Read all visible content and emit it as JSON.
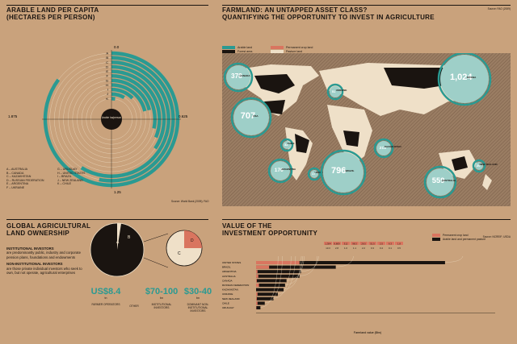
{
  "colors": {
    "background": "#c9a27c",
    "teal": "#2a9a92",
    "dark": "#1a1410",
    "light_teal": "#9ecfc8",
    "salmon": "#d9755f",
    "pale": "#efe0c8",
    "grey": "#aab3b3"
  },
  "arable": {
    "title_line1": "ARABLE LAND PER CAPITA",
    "title_line2": "(HECTARES PER PERSON)",
    "ring_letters": [
      "A",
      "B",
      "C",
      "D",
      "E",
      "F",
      "G",
      "H",
      "I",
      "J",
      "K"
    ],
    "tick_top": "0.0",
    "tick_left": "1.875",
    "tick_right": "0.625",
    "tick_bottom": "1.25",
    "center_label": "Arable ha/person",
    "legend": [
      "A – AUSTRALIA",
      "B – CANADA",
      "C – KAZAKHSTAN",
      "D – RUSSIAN FEDERATION",
      "E – ARGENTINA",
      "F – UKRAINE",
      "G – URUGUAY",
      "H – UNITED STATES",
      "I – BRAZIL",
      "J – NEW ZEALAND",
      "K – CHILE"
    ],
    "source": "Source: World Bank (2009); FAO"
  },
  "farmland": {
    "title_line1": "FARMLAND: AN UNTAPPED ASSET CLASS?",
    "title_line2": "QUANTIFYING THE OPPORTUNITY TO INVEST IN AGRICULTURE",
    "legend": {
      "arable": "Arable land",
      "forest": "Forest area",
      "permanent_crop": "Permanent crop land",
      "pasture": "Pasture land"
    },
    "source": "Source: FAO (2009)",
    "bubbles": [
      {
        "value": "378",
        "name": "CANADA"
      },
      {
        "value": "51",
        "name": "UKRAINE"
      },
      {
        "value": "1,024",
        "name": "RUSSIA"
      },
      {
        "value": "707",
        "name": "USA"
      },
      {
        "value": "32",
        "name": "CHILE"
      },
      {
        "value": "213",
        "name": "KAZAKHSTAN"
      },
      {
        "value": "170",
        "name": "ARGENTINA"
      },
      {
        "value": "17",
        "name": "URUGUAY"
      },
      {
        "value": "796",
        "name": "BRAZIL"
      },
      {
        "value": "20",
        "name": "NEW ZEALAND"
      },
      {
        "value": "559",
        "name": "AUSTRALIA"
      }
    ],
    "bubble_unit": "million hectares"
  },
  "ownership": {
    "title_line1": "GLOBAL AGRICULTURAL",
    "title_line2": "LAND OWNERSHIP",
    "inst_head": "INSTITUTIONAL INVESTORS",
    "inst_body": "are predominantly public, industry and corporate pension plans, foundations and endowments",
    "noninst_head": "NON-INSTITUTIONAL INVESTORS",
    "noninst_body": "are those private individual investors who seek to own, but not operate, agricultural enterprises",
    "pie_letters": [
      "A",
      "B",
      "C",
      "D"
    ],
    "values": [
      {
        "amount": "US$8.4",
        "unit": "tn",
        "label": "FARMER OPERATORS"
      },
      {
        "amount": "",
        "unit": "",
        "label": "OTHER"
      },
      {
        "amount": "$70-100",
        "unit": "bn",
        "label": "INSTITUTIONAL INVESTORS"
      },
      {
        "amount": "$30-40",
        "unit": "bn",
        "label": "DOMINANT NON-INSTITUTIONAL INVESTORS"
      }
    ]
  },
  "investment": {
    "title_line1": "VALUE OF THE",
    "title_line2": "INVESTMENT OPPORTUNITY",
    "legend": {
      "permanent": "Permanent crop land",
      "arable": "Arable land and permanent pasture"
    },
    "source": "Source: NCREIF; USDA",
    "xlabel": "Farmland value ($bn)",
    "header_values": [
      "1,304",
      "8,809",
      "312",
      "98.3",
      "26.5",
      "51.5",
      "2.5",
      "6.3",
      "1.8"
    ],
    "header_values2": [
      "13.3",
      "2.8",
      "1.0",
      "1.1",
      "2.2",
      "0.3",
      "0.4",
      "0.1",
      "0.5"
    ]
  },
  "chart_data": [
    {
      "type": "bar",
      "title": "ARABLE LAND PER CAPITA (HECTARES PER PERSON)",
      "orientation": "radial",
      "categories": [
        "AUSTRALIA",
        "CANADA",
        "KAZAKHSTAN",
        "RUSSIAN FEDERATION",
        "ARGENTINA",
        "UKRAINE",
        "URUGUAY",
        "UNITED STATES",
        "BRAZIL",
        "NEW ZEALAND",
        "CHILE"
      ],
      "values": [
        2.13,
        1.33,
        1.47,
        0.86,
        0.78,
        0.71,
        0.53,
        0.53,
        0.31,
        0.21,
        0.07
      ],
      "ylim": [
        0,
        2.5
      ],
      "ticks": [
        "0.0",
        "0.625",
        "1.25",
        "1.875"
      ]
    },
    {
      "type": "bar",
      "title": "VALUE OF THE INVESTMENT OPPORTUNITY",
      "orientation": "horizontal",
      "categories": [
        "UNITED STATES",
        "BRAZIL",
        "ARGENTINA",
        "AUSTRALIA",
        "CANADA",
        "RUSSIAN FEDERATION",
        "KAZAKHSTAN",
        "UKRAINE",
        "NEW ZEALAND",
        "CHILE",
        "URUGUAY"
      ],
      "series": [
        {
          "name": "Permanent crop land",
          "values": [
            300,
            90,
            10,
            15,
            5,
            20,
            0,
            10,
            5,
            10,
            2
          ]
        },
        {
          "name": "Arable land and permanent pasture",
          "values": [
            1304,
            550,
            310,
            300,
            210,
            200,
            190,
            150,
            120,
            60,
            30
          ]
        }
      ],
      "xlabel": "Farmland value ($bn)"
    },
    {
      "type": "pie",
      "title": "GLOBAL AGRICULTURAL LAND OWNERSHIP",
      "categories": [
        "A",
        "B",
        "C",
        "D"
      ],
      "values": [
        8400,
        10,
        85,
        35
      ]
    }
  ]
}
